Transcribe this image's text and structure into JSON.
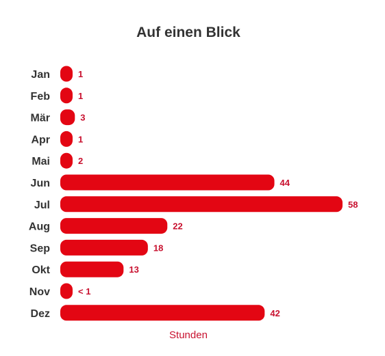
{
  "colors": {
    "bar": "#e30613",
    "label_text": "#333333",
    "value_text": "#c8102e"
  },
  "chart_data": {
    "type": "bar",
    "orientation": "horizontal",
    "title": "Auf einen Blick",
    "xlabel": "Stunden",
    "ylabel": "",
    "categories": [
      "Jan",
      "Feb",
      "Mär",
      "Apr",
      "Mai",
      "Jun",
      "Jul",
      "Aug",
      "Sep",
      "Okt",
      "Nov",
      "Dez"
    ],
    "values": [
      1,
      1,
      3,
      1,
      2,
      44,
      58,
      22,
      18,
      13,
      0.5,
      42
    ],
    "value_labels": [
      "1",
      "1",
      "3",
      "1",
      "2",
      "44",
      "58",
      "22",
      "18",
      "13",
      "< 1",
      "42"
    ],
    "xlim": [
      0,
      58
    ],
    "grid": false,
    "legend": "none"
  }
}
